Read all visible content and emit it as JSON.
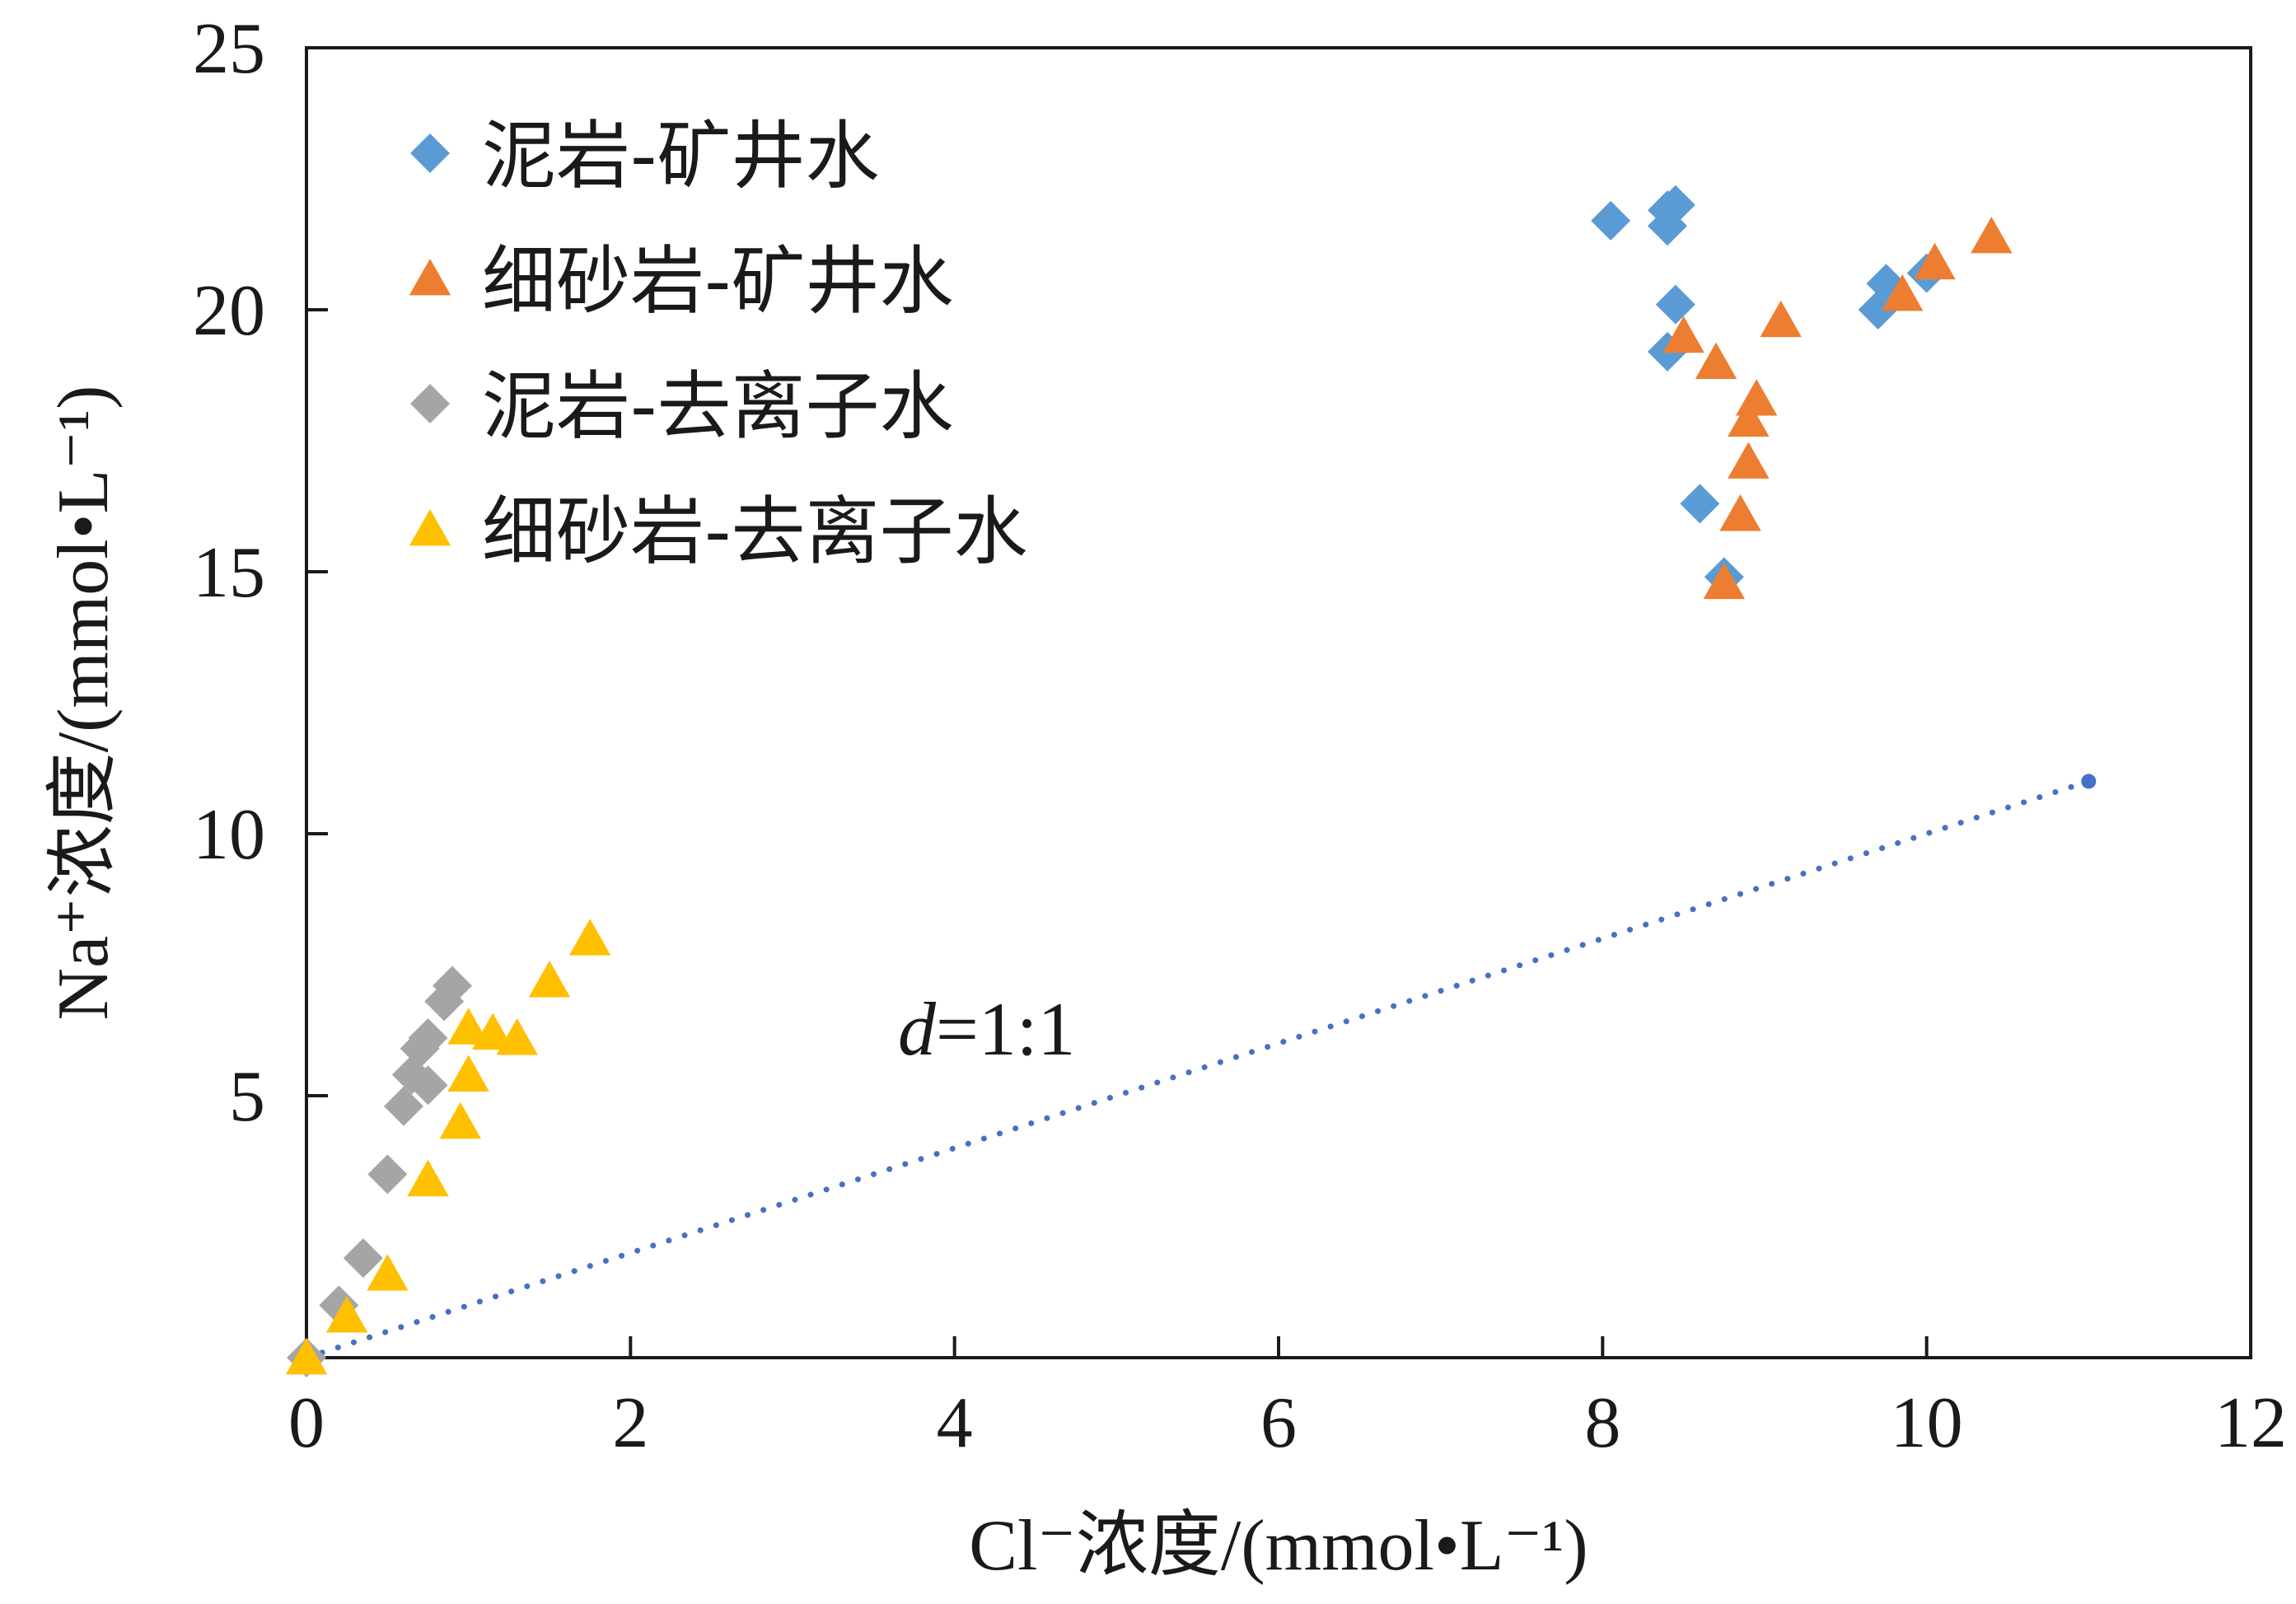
{
  "chart_data": {
    "type": "scatter",
    "xlabel": "Cl⁻浓度/(mmol•L⁻¹)",
    "ylabel": "Na⁺浓度/(mmol•L⁻¹)",
    "xlim": [
      0,
      12
    ],
    "ylim": [
      0,
      25
    ],
    "xticks": [
      "0",
      "2",
      "4",
      "6",
      "8",
      "10",
      "12"
    ],
    "yticks": [
      "5",
      "10",
      "15",
      "20",
      "25"
    ],
    "grid": false,
    "legend_position": "top-left",
    "series": [
      {
        "name": "泥岩-矿井水",
        "marker": "diamond",
        "color": "#5b9bd5",
        "points": [
          [
            8.05,
            21.7
          ],
          [
            8.4,
            21.9
          ],
          [
            8.45,
            22.0
          ],
          [
            8.4,
            21.6
          ],
          [
            8.45,
            20.1
          ],
          [
            8.4,
            19.2
          ],
          [
            8.6,
            16.3
          ],
          [
            8.75,
            14.9
          ],
          [
            9.7,
            20.0
          ],
          [
            9.75,
            20.5
          ],
          [
            10.0,
            20.7
          ]
        ]
      },
      {
        "name": "细砂岩-矿井水",
        "marker": "triangle",
        "color": "#ed7d31",
        "points": [
          [
            8.5,
            19.5
          ],
          [
            8.7,
            19.0
          ],
          [
            8.75,
            14.8
          ],
          [
            8.85,
            16.1
          ],
          [
            8.9,
            17.1
          ],
          [
            8.9,
            17.9
          ],
          [
            8.95,
            18.3
          ],
          [
            9.1,
            19.8
          ],
          [
            9.85,
            20.3
          ],
          [
            10.05,
            20.9
          ],
          [
            10.4,
            21.4
          ]
        ]
      },
      {
        "name": "泥岩-去离子水",
        "marker": "diamond",
        "color": "#a5a5a5",
        "points": [
          [
            0.0,
            0.0
          ],
          [
            0.2,
            1.0
          ],
          [
            0.35,
            1.9
          ],
          [
            0.5,
            3.5
          ],
          [
            0.6,
            4.8
          ],
          [
            0.65,
            5.4
          ],
          [
            0.7,
            5.9
          ],
          [
            0.75,
            6.1
          ],
          [
            0.75,
            5.2
          ],
          [
            0.85,
            6.8
          ],
          [
            0.9,
            7.1
          ]
        ]
      },
      {
        "name": "细砂岩-去离子水",
        "marker": "triangle",
        "color": "#ffc000",
        "points": [
          [
            0.0,
            0.0
          ],
          [
            0.25,
            0.8
          ],
          [
            0.5,
            1.6
          ],
          [
            0.75,
            3.4
          ],
          [
            0.95,
            4.5
          ],
          [
            1.0,
            5.4
          ],
          [
            1.0,
            6.3
          ],
          [
            1.15,
            6.2
          ],
          [
            1.3,
            6.1
          ],
          [
            1.5,
            7.2
          ],
          [
            1.75,
            8.0
          ]
        ]
      }
    ],
    "reference_line": {
      "label_italic": "d",
      "label_rest": "=1:1",
      "color": "#4472c4",
      "style": "dotted",
      "points": [
        [
          0,
          0
        ],
        [
          11,
          11
        ]
      ]
    }
  }
}
